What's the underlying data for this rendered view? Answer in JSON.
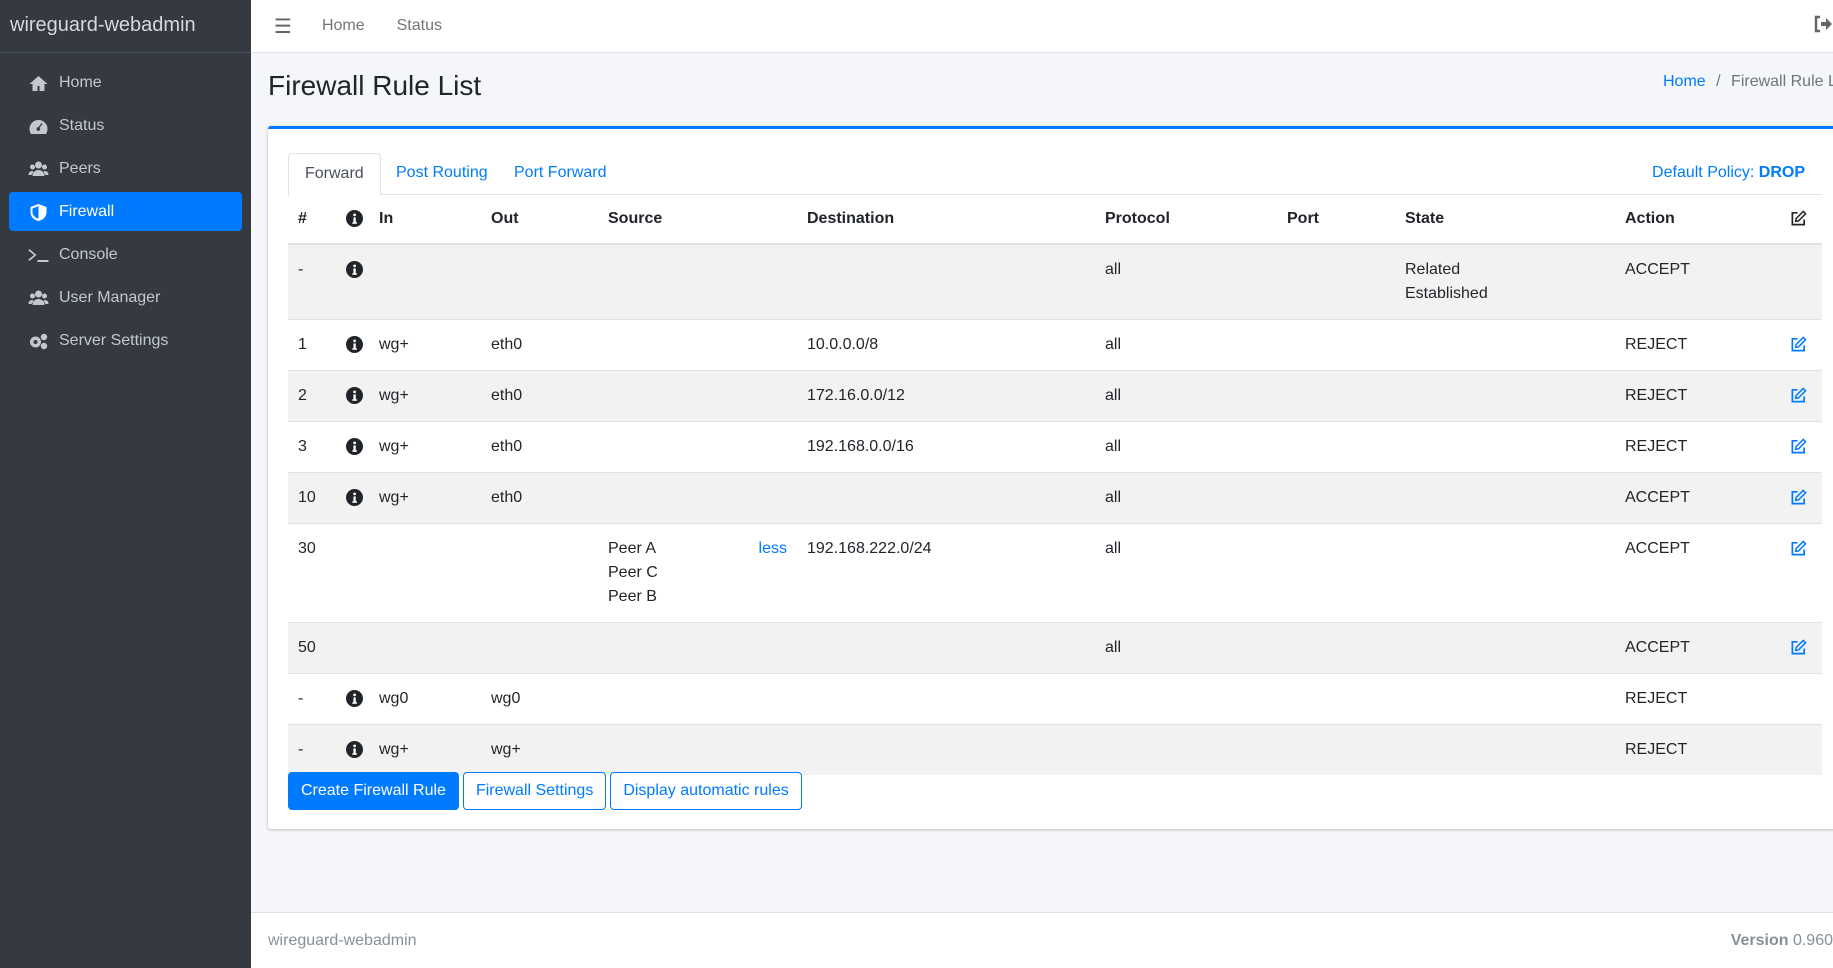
{
  "brand": "wireguard-webadmin",
  "sidebar": {
    "items": [
      {
        "label": "Home",
        "icon": "home-icon"
      },
      {
        "label": "Status",
        "icon": "gauge-icon"
      },
      {
        "label": "Peers",
        "icon": "users-icon"
      },
      {
        "label": "Firewall",
        "icon": "shield-icon",
        "active": true
      },
      {
        "label": "Console",
        "icon": "terminal-icon"
      },
      {
        "label": "User Manager",
        "icon": "users-icon"
      },
      {
        "label": "Server Settings",
        "icon": "cogs-icon"
      }
    ]
  },
  "topbar": {
    "links": [
      "Home",
      "Status"
    ]
  },
  "page": {
    "title": "Firewall Rule List",
    "breadcrumb": {
      "home": "Home",
      "sep": "/",
      "current": "Firewall Rule List"
    }
  },
  "tabs": [
    "Forward",
    "Post Routing",
    "Port Forward"
  ],
  "policy": {
    "label": "Default Policy:",
    "value": "DROP"
  },
  "table": {
    "headers": [
      "#",
      "",
      "In",
      "Out",
      "Source",
      "Destination",
      "Protocol",
      "Port",
      "State",
      "Action",
      ""
    ],
    "rows": [
      {
        "num": "-",
        "info": true,
        "in": "",
        "out": "",
        "source": [],
        "dest": "",
        "proto": "all",
        "port": "",
        "state": [
          "Related",
          "Established"
        ],
        "action": "ACCEPT",
        "edit": false
      },
      {
        "num": "1",
        "info": true,
        "in": "wg+",
        "out": "eth0",
        "source": [],
        "dest": "10.0.0.0/8",
        "proto": "all",
        "port": "",
        "state": [],
        "action": "REJECT",
        "edit": true
      },
      {
        "num": "2",
        "info": true,
        "in": "wg+",
        "out": "eth0",
        "source": [],
        "dest": "172.16.0.0/12",
        "proto": "all",
        "port": "",
        "state": [],
        "action": "REJECT",
        "edit": true
      },
      {
        "num": "3",
        "info": true,
        "in": "wg+",
        "out": "eth0",
        "source": [],
        "dest": "192.168.0.0/16",
        "proto": "all",
        "port": "",
        "state": [],
        "action": "REJECT",
        "edit": true
      },
      {
        "num": "10",
        "info": true,
        "in": "wg+",
        "out": "eth0",
        "source": [],
        "dest": "",
        "proto": "all",
        "port": "",
        "state": [],
        "action": "ACCEPT",
        "edit": true
      },
      {
        "num": "30",
        "info": false,
        "in": "",
        "out": "",
        "source": [
          "Peer A",
          "Peer C",
          "Peer B"
        ],
        "source_toggle": "less",
        "dest": "192.168.222.0/24",
        "proto": "all",
        "port": "",
        "state": [],
        "action": "ACCEPT",
        "edit": true
      },
      {
        "num": "50",
        "info": false,
        "in": "",
        "out": "",
        "source": [],
        "dest": "",
        "proto": "all",
        "port": "",
        "state": [],
        "action": "ACCEPT",
        "edit": true
      },
      {
        "num": "-",
        "info": true,
        "in": "wg0",
        "out": "wg0",
        "source": [],
        "dest": "",
        "proto": "",
        "port": "",
        "state": [],
        "action": "REJECT",
        "edit": false
      },
      {
        "num": "-",
        "info": true,
        "in": "wg+",
        "out": "wg+",
        "source": [],
        "dest": "",
        "proto": "",
        "port": "",
        "state": [],
        "action": "REJECT",
        "edit": false
      }
    ]
  },
  "buttons": {
    "create": "Create Firewall Rule",
    "settings": "Firewall Settings",
    "auto": "Display automatic rules"
  },
  "footer": {
    "left": "wireguard-webadmin",
    "version_label": "Version",
    "version": "0.960"
  },
  "colors": {
    "accent": "#007bff",
    "sidebar": "#343a40"
  }
}
